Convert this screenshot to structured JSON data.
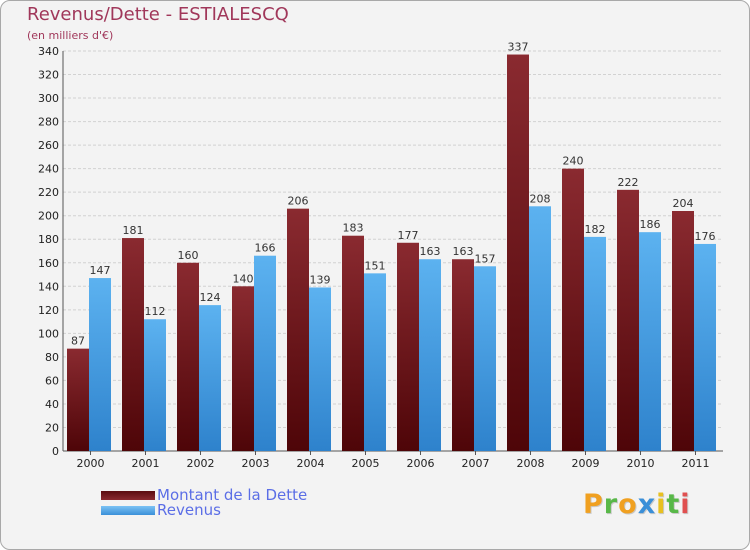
{
  "chart_data": {
    "type": "bar",
    "title": "Revenus/Dette - ESTIALESCQ",
    "subtitle": "(en milliers d'€)",
    "categories": [
      "2000",
      "2001",
      "2002",
      "2003",
      "2004",
      "2005",
      "2006",
      "2007",
      "2008",
      "2009",
      "2010",
      "2011"
    ],
    "series": [
      {
        "name": "Montant de la Dette",
        "color": "#7a1a1f",
        "values": [
          87,
          181,
          160,
          140,
          206,
          183,
          177,
          163,
          337,
          240,
          222,
          204
        ]
      },
      {
        "name": "Revenus",
        "color": "#4ba3e8",
        "values": [
          147,
          112,
          124,
          166,
          139,
          151,
          163,
          157,
          208,
          182,
          186,
          176
        ]
      }
    ],
    "ylim": [
      0,
      340
    ],
    "ytick_step": 20,
    "grid": true,
    "legend_position": "bottom-left"
  },
  "branding": {
    "logo_letters": [
      "P",
      "r",
      "o",
      "x",
      "i",
      "t",
      "i"
    ],
    "logo_colors": [
      "#f0a020",
      "#58b848",
      "#f0a020",
      "#3a8fd8",
      "#e8c020",
      "#58b848",
      "#e05050"
    ]
  }
}
